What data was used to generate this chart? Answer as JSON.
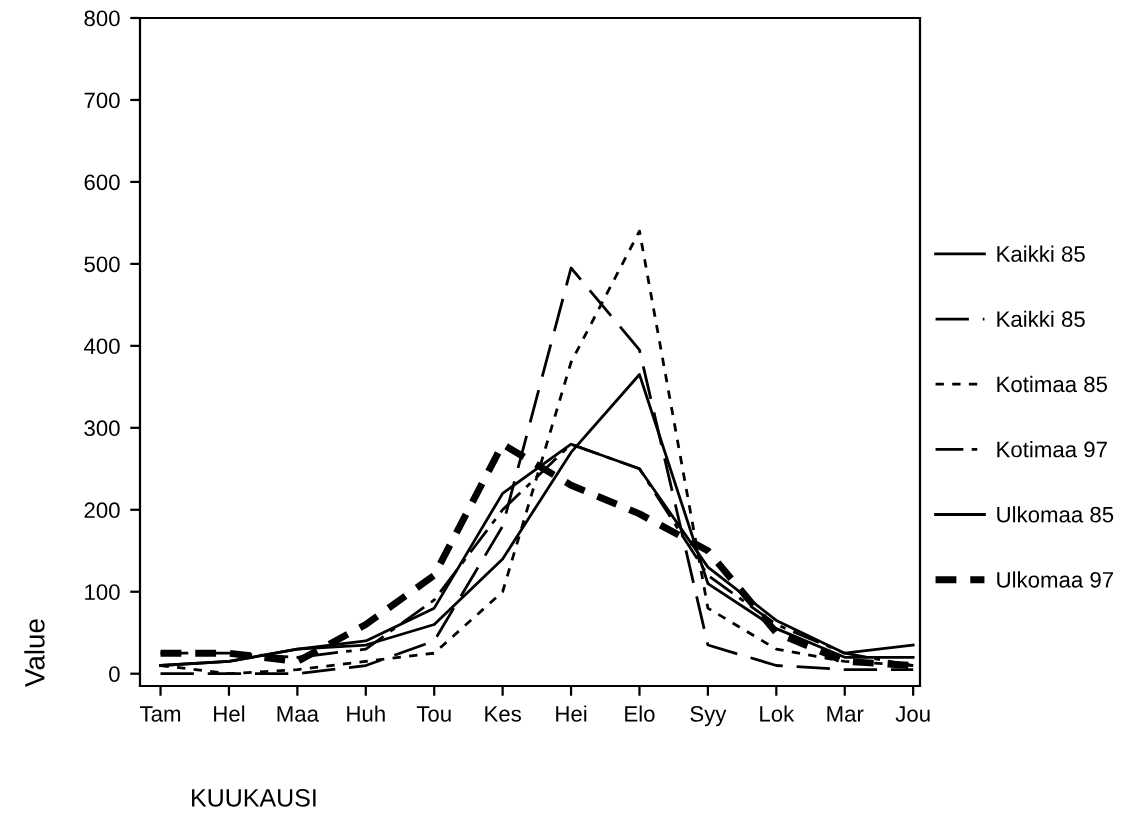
{
  "chart_data": {
    "type": "line",
    "xlabel": "KUUKAUSI",
    "ylabel": "Value",
    "categories": [
      "Tam",
      "Hel",
      "Maa",
      "Huh",
      "Tou",
      "Kes",
      "Hei",
      "Elo",
      "Syy",
      "Lok",
      "Mar",
      "Jou"
    ],
    "series": [
      {
        "name": "Kaikki 85",
        "color": "#000000",
        "line_style": "solid",
        "values": [
          10,
          15,
          30,
          35,
          60,
          140,
          270,
          365,
          110,
          55,
          20,
          20
        ]
      },
      {
        "name": "Kaikki 85",
        "color": "#000000",
        "line_style": "dashed",
        "values": [
          0,
          0,
          0,
          10,
          40,
          180,
          495,
          395,
          35,
          10,
          5,
          5
        ]
      },
      {
        "name": "Kotimaa 85",
        "color": "#000000",
        "line_style": "dotted",
        "values": [
          10,
          0,
          5,
          15,
          25,
          100,
          380,
          540,
          80,
          30,
          15,
          10
        ]
      },
      {
        "name": "Kotimaa 97",
        "color": "#000000",
        "line_style": "dashdot",
        "values": [
          25,
          25,
          20,
          30,
          90,
          200,
          280,
          250,
          120,
          60,
          25,
          10
        ]
      },
      {
        "name": "Ulkomaa 85",
        "color": "#000000",
        "line_style": "solid",
        "values": [
          10,
          15,
          30,
          40,
          80,
          220,
          280,
          250,
          130,
          65,
          25,
          35
        ]
      },
      {
        "name": "Ulkomaa 97",
        "color": "#000000",
        "line_style": "thickdash",
        "values": [
          25,
          25,
          15,
          60,
          120,
          280,
          230,
          195,
          150,
          50,
          15,
          10
        ]
      }
    ],
    "ylim": [
      -15,
      800
    ],
    "yticks": [
      0,
      100,
      200,
      300,
      400,
      500,
      600,
      700,
      800
    ],
    "grid": false,
    "legend": "right",
    "marker": "none"
  }
}
